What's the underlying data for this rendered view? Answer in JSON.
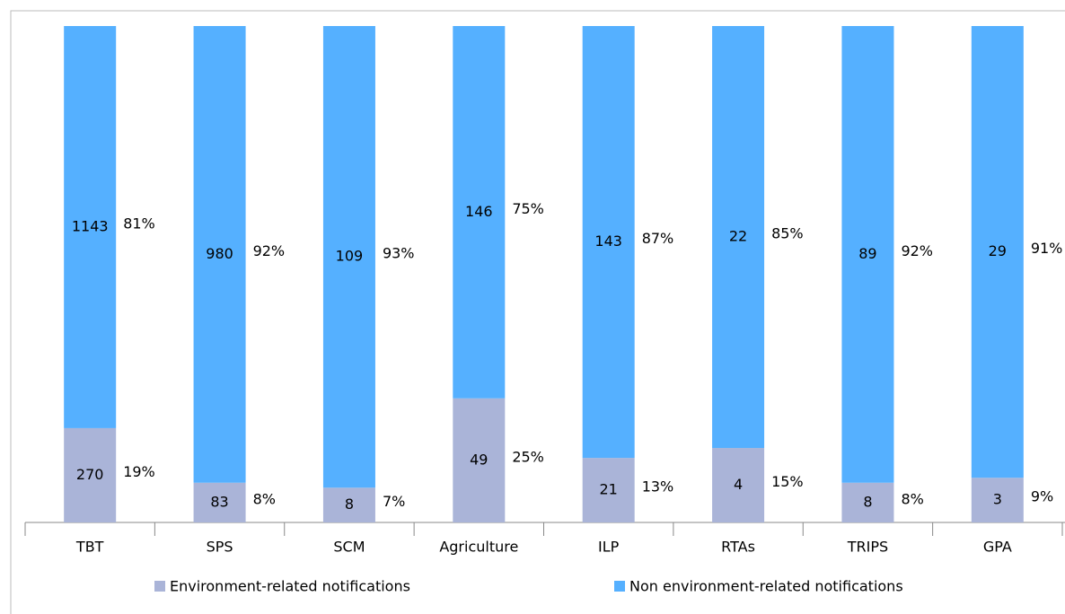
{
  "chart_data": {
    "type": "stacked_bar_100",
    "categories": [
      "TBT",
      "SPS",
      "SCM",
      "Agriculture",
      "ILP",
      "RTAs",
      "TRIPS",
      "GPA"
    ],
    "ylim": [
      0,
      100
    ],
    "series": [
      {
        "name": "Environment-related notifications",
        "color": "#aab4d8",
        "values": [
          19,
          8,
          7,
          25,
          13,
          15,
          8,
          9
        ],
        "value_labels": [
          "19%",
          "8%",
          "7%",
          "25%",
          "13%",
          "15%",
          "8%",
          "9%"
        ],
        "counts": [
          270,
          83,
          8,
          49,
          21,
          4,
          8,
          3
        ]
      },
      {
        "name": "Non environment-related notifications",
        "color": "#55b0ff",
        "values": [
          81,
          92,
          93,
          75,
          87,
          85,
          92,
          91
        ],
        "value_labels": [
          "81%",
          "92%",
          "93%",
          "75%",
          "87%",
          "85%",
          "92%",
          "91%"
        ],
        "counts": [
          1143,
          980,
          109,
          146,
          143,
          22,
          89,
          29
        ]
      }
    ]
  }
}
